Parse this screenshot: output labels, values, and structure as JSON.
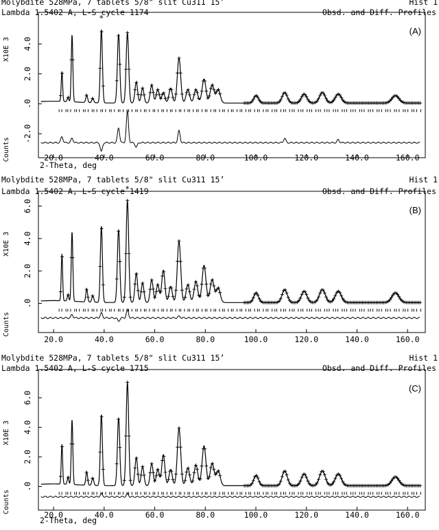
{
  "colors": {
    "ink": "#000000",
    "background": "#ffffff"
  },
  "chart_data": [
    {
      "type": "line",
      "panel_label": "(A)",
      "header_line1_left": "Molybdite 528MPa, 7 tablets 5/8\" slit Cu311 15’",
      "header_line1_right": "Hist   1",
      "header_line2_left": "Lambda 1.5402 A, L-S cycle 1174",
      "header_line2_right": "Obsd. and Diff. Profiles",
      "ylabel_scale": "X10E 3",
      "ylabel_counts": "Counts",
      "xlabel": "2-Theta, deg",
      "xlim": [
        14,
        167
      ],
      "ylim": [
        -3.6,
        6.2
      ],
      "x_ticks": [
        "20.0",
        "40.0",
        "60.0",
        "80.0",
        "100.0",
        "120.0",
        "140.0",
        "160.0"
      ],
      "y_ticks": [
        "-2.0",
        ".0",
        "2.0",
        "4.0"
      ],
      "baseline_counts": 100,
      "difference_offset": -2.6,
      "peaks": [
        {
          "x": 23.3,
          "y": 2.0
        },
        {
          "x": 25.7,
          "y": 0.3
        },
        {
          "x": 27.3,
          "y": 4.5
        },
        {
          "x": 33.1,
          "y": 0.5
        },
        {
          "x": 35.5,
          "y": 0.3
        },
        {
          "x": 38.9,
          "y": 4.9
        },
        {
          "x": 45.7,
          "y": 4.6
        },
        {
          "x": 49.2,
          "y": 4.7
        },
        {
          "x": 52.7,
          "y": 1.4
        },
        {
          "x": 55.2,
          "y": 1.0
        },
        {
          "x": 58.8,
          "y": 1.2
        },
        {
          "x": 61.2,
          "y": 0.9
        },
        {
          "x": 63.4,
          "y": 0.7
        },
        {
          "x": 66.3,
          "y": 1.0
        },
        {
          "x": 69.6,
          "y": 3.0
        },
        {
          "x": 73.1,
          "y": 0.9
        },
        {
          "x": 76.3,
          "y": 0.9
        },
        {
          "x": 79.5,
          "y": 1.6
        },
        {
          "x": 82.7,
          "y": 1.2
        },
        {
          "x": 85.1,
          "y": 0.9
        },
        {
          "x": 100.1,
          "y": 0.5
        },
        {
          "x": 111.4,
          "y": 0.7
        },
        {
          "x": 119.1,
          "y": 0.6
        },
        {
          "x": 126.3,
          "y": 0.7
        },
        {
          "x": 132.6,
          "y": 0.6
        },
        {
          "x": 155.2,
          "y": 0.5
        }
      ],
      "diff_features": [
        {
          "x": 23.3,
          "y": 0.4
        },
        {
          "x": 27.3,
          "y": 0.3
        },
        {
          "x": 38.9,
          "y": -0.6
        },
        {
          "x": 45.7,
          "y": 1.0
        },
        {
          "x": 49.2,
          "y": 2.1
        },
        {
          "x": 52.7,
          "y": -0.3
        },
        {
          "x": 69.6,
          "y": 0.8
        },
        {
          "x": 111.4,
          "y": 0.3
        },
        {
          "x": 132.6,
          "y": 0.2
        }
      ],
      "star_label": "*"
    },
    {
      "type": "line",
      "panel_label": "(B)",
      "header_line1_left": "Molybdite 528MPa, 7 tablets 5/8\" slit Cu311 15’",
      "header_line1_right": "Hist   1",
      "header_line2_left": "Lambda 1.5402 A, L-S cycle 1419",
      "header_line2_right": "Obsd. and Diff. Profiles",
      "ylabel_scale": "X10E 3",
      "ylabel_counts": "Counts",
      "xlabel": "",
      "xlim": [
        14,
        167
      ],
      "ylim": [
        -1.8,
        7.0
      ],
      "x_ticks": [
        "20.0",
        "40.0",
        "60.0",
        "80.0",
        "100.0",
        "120.0",
        "140.0",
        "160.0"
      ],
      "y_ticks": [
        ".0",
        "2.0",
        "4.0",
        "6.0"
      ],
      "baseline_counts": 100,
      "difference_offset": -0.9,
      "peaks": [
        {
          "x": 23.3,
          "y": 2.9
        },
        {
          "x": 25.7,
          "y": 0.4
        },
        {
          "x": 27.3,
          "y": 4.3
        },
        {
          "x": 33.1,
          "y": 0.8
        },
        {
          "x": 35.5,
          "y": 0.4
        },
        {
          "x": 38.9,
          "y": 4.7
        },
        {
          "x": 45.7,
          "y": 4.5
        },
        {
          "x": 49.2,
          "y": 6.3
        },
        {
          "x": 52.7,
          "y": 1.8
        },
        {
          "x": 55.2,
          "y": 1.2
        },
        {
          "x": 58.8,
          "y": 1.4
        },
        {
          "x": 61.2,
          "y": 1.1
        },
        {
          "x": 63.4,
          "y": 2.0
        },
        {
          "x": 66.3,
          "y": 1.0
        },
        {
          "x": 69.6,
          "y": 3.8
        },
        {
          "x": 73.1,
          "y": 1.1
        },
        {
          "x": 76.3,
          "y": 1.3
        },
        {
          "x": 79.5,
          "y": 2.3
        },
        {
          "x": 82.7,
          "y": 1.4
        },
        {
          "x": 85.1,
          "y": 0.9
        },
        {
          "x": 100.1,
          "y": 0.6
        },
        {
          "x": 111.4,
          "y": 0.8
        },
        {
          "x": 119.1,
          "y": 0.7
        },
        {
          "x": 126.3,
          "y": 0.8
        },
        {
          "x": 132.6,
          "y": 0.7
        },
        {
          "x": 155.2,
          "y": 0.6
        }
      ],
      "diff_features": [
        {
          "x": 27.3,
          "y": 0.2
        },
        {
          "x": 38.9,
          "y": 0.3
        },
        {
          "x": 45.7,
          "y": -0.2
        },
        {
          "x": 49.2,
          "y": 0.5
        },
        {
          "x": 69.6,
          "y": 0.1
        }
      ],
      "star_label": "*"
    },
    {
      "type": "line",
      "panel_label": "(C)",
      "header_line1_left": "Molybdite 528MPa, 7 tablets 5/8\" slit Cu311 15’",
      "header_line1_right": "Hist   1",
      "header_line2_left": "Lambda 1.5402 A, L-S cycle 1715",
      "header_line2_right": "Obsd. and Diff. Profiles",
      "ylabel_scale": "X10E 3",
      "ylabel_counts": "Counts",
      "xlabel": "2-Theta, deg",
      "xlim": [
        14,
        167
      ],
      "ylim": [
        -1.6,
        8.0
      ],
      "x_ticks": [
        "20.0",
        "40.0",
        "60.0",
        "80.0",
        "100.0",
        "120.0",
        "140.0",
        "160.0"
      ],
      "y_ticks": [
        ".0",
        "2.0",
        "4.0",
        "6.0"
      ],
      "baseline_counts": 100,
      "difference_offset": -0.7,
      "peaks": [
        {
          "x": 23.3,
          "y": 2.7
        },
        {
          "x": 25.7,
          "y": 0.5
        },
        {
          "x": 27.3,
          "y": 4.4
        },
        {
          "x": 33.1,
          "y": 0.9
        },
        {
          "x": 35.5,
          "y": 0.5
        },
        {
          "x": 38.9,
          "y": 4.8
        },
        {
          "x": 45.7,
          "y": 4.6
        },
        {
          "x": 49.2,
          "y": 7.0
        },
        {
          "x": 52.7,
          "y": 1.9
        },
        {
          "x": 55.2,
          "y": 1.3
        },
        {
          "x": 58.8,
          "y": 1.5
        },
        {
          "x": 61.2,
          "y": 1.1
        },
        {
          "x": 63.4,
          "y": 2.1
        },
        {
          "x": 66.3,
          "y": 1.1
        },
        {
          "x": 69.6,
          "y": 3.9
        },
        {
          "x": 73.1,
          "y": 1.2
        },
        {
          "x": 76.3,
          "y": 1.4
        },
        {
          "x": 79.5,
          "y": 2.7
        },
        {
          "x": 82.7,
          "y": 1.5
        },
        {
          "x": 85.1,
          "y": 1.0
        },
        {
          "x": 100.1,
          "y": 0.7
        },
        {
          "x": 111.4,
          "y": 1.0
        },
        {
          "x": 119.1,
          "y": 0.8
        },
        {
          "x": 126.3,
          "y": 1.0
        },
        {
          "x": 132.6,
          "y": 0.8
        },
        {
          "x": 155.2,
          "y": 0.6
        }
      ],
      "diff_features": [
        {
          "x": 38.9,
          "y": 0.2
        },
        {
          "x": 49.2,
          "y": 0.2
        }
      ],
      "star_label": ""
    }
  ]
}
